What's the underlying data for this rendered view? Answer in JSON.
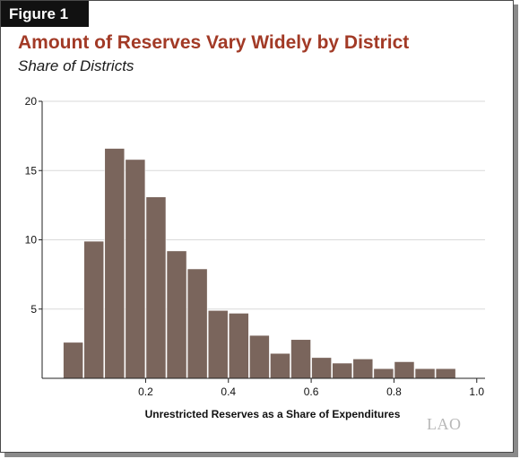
{
  "figure_label": "Figure 1",
  "logo_text": "LAO",
  "colors": {
    "bar": "#7a655c",
    "title": "#a23a26",
    "grid": "#d9d9d9",
    "axis": "#222222"
  },
  "chart_data": {
    "type": "bar",
    "title": "Amount of Reserves Vary Widely by District",
    "subtitle": "Share of Districts",
    "xlabel": "Unrestricted Reserves as a Share of Expenditures",
    "ylabel": "",
    "xlim": [
      -0.05,
      1.02
    ],
    "ylim": [
      0,
      20
    ],
    "xticks": [
      0.2,
      0.4,
      0.6,
      0.8,
      1.0
    ],
    "xtick_labels": [
      "0.2",
      "0.4",
      "0.6",
      "0.8",
      "1.0"
    ],
    "yticks": [
      5,
      10,
      15,
      20
    ],
    "ytick_labels": [
      "5",
      "10",
      "15",
      "20"
    ],
    "grid": true,
    "bin_width": 0.05,
    "bin_starts": [
      0.0,
      0.05,
      0.1,
      0.15,
      0.2,
      0.25,
      0.3,
      0.35,
      0.4,
      0.45,
      0.5,
      0.55,
      0.6,
      0.65,
      0.7,
      0.75,
      0.8,
      0.85,
      0.9
    ],
    "values": [
      2.6,
      9.9,
      16.6,
      15.8,
      13.1,
      9.2,
      7.9,
      4.9,
      4.7,
      3.1,
      1.8,
      2.8,
      1.5,
      1.1,
      1.4,
      0.7,
      1.2,
      0.7,
      0.7
    ]
  }
}
